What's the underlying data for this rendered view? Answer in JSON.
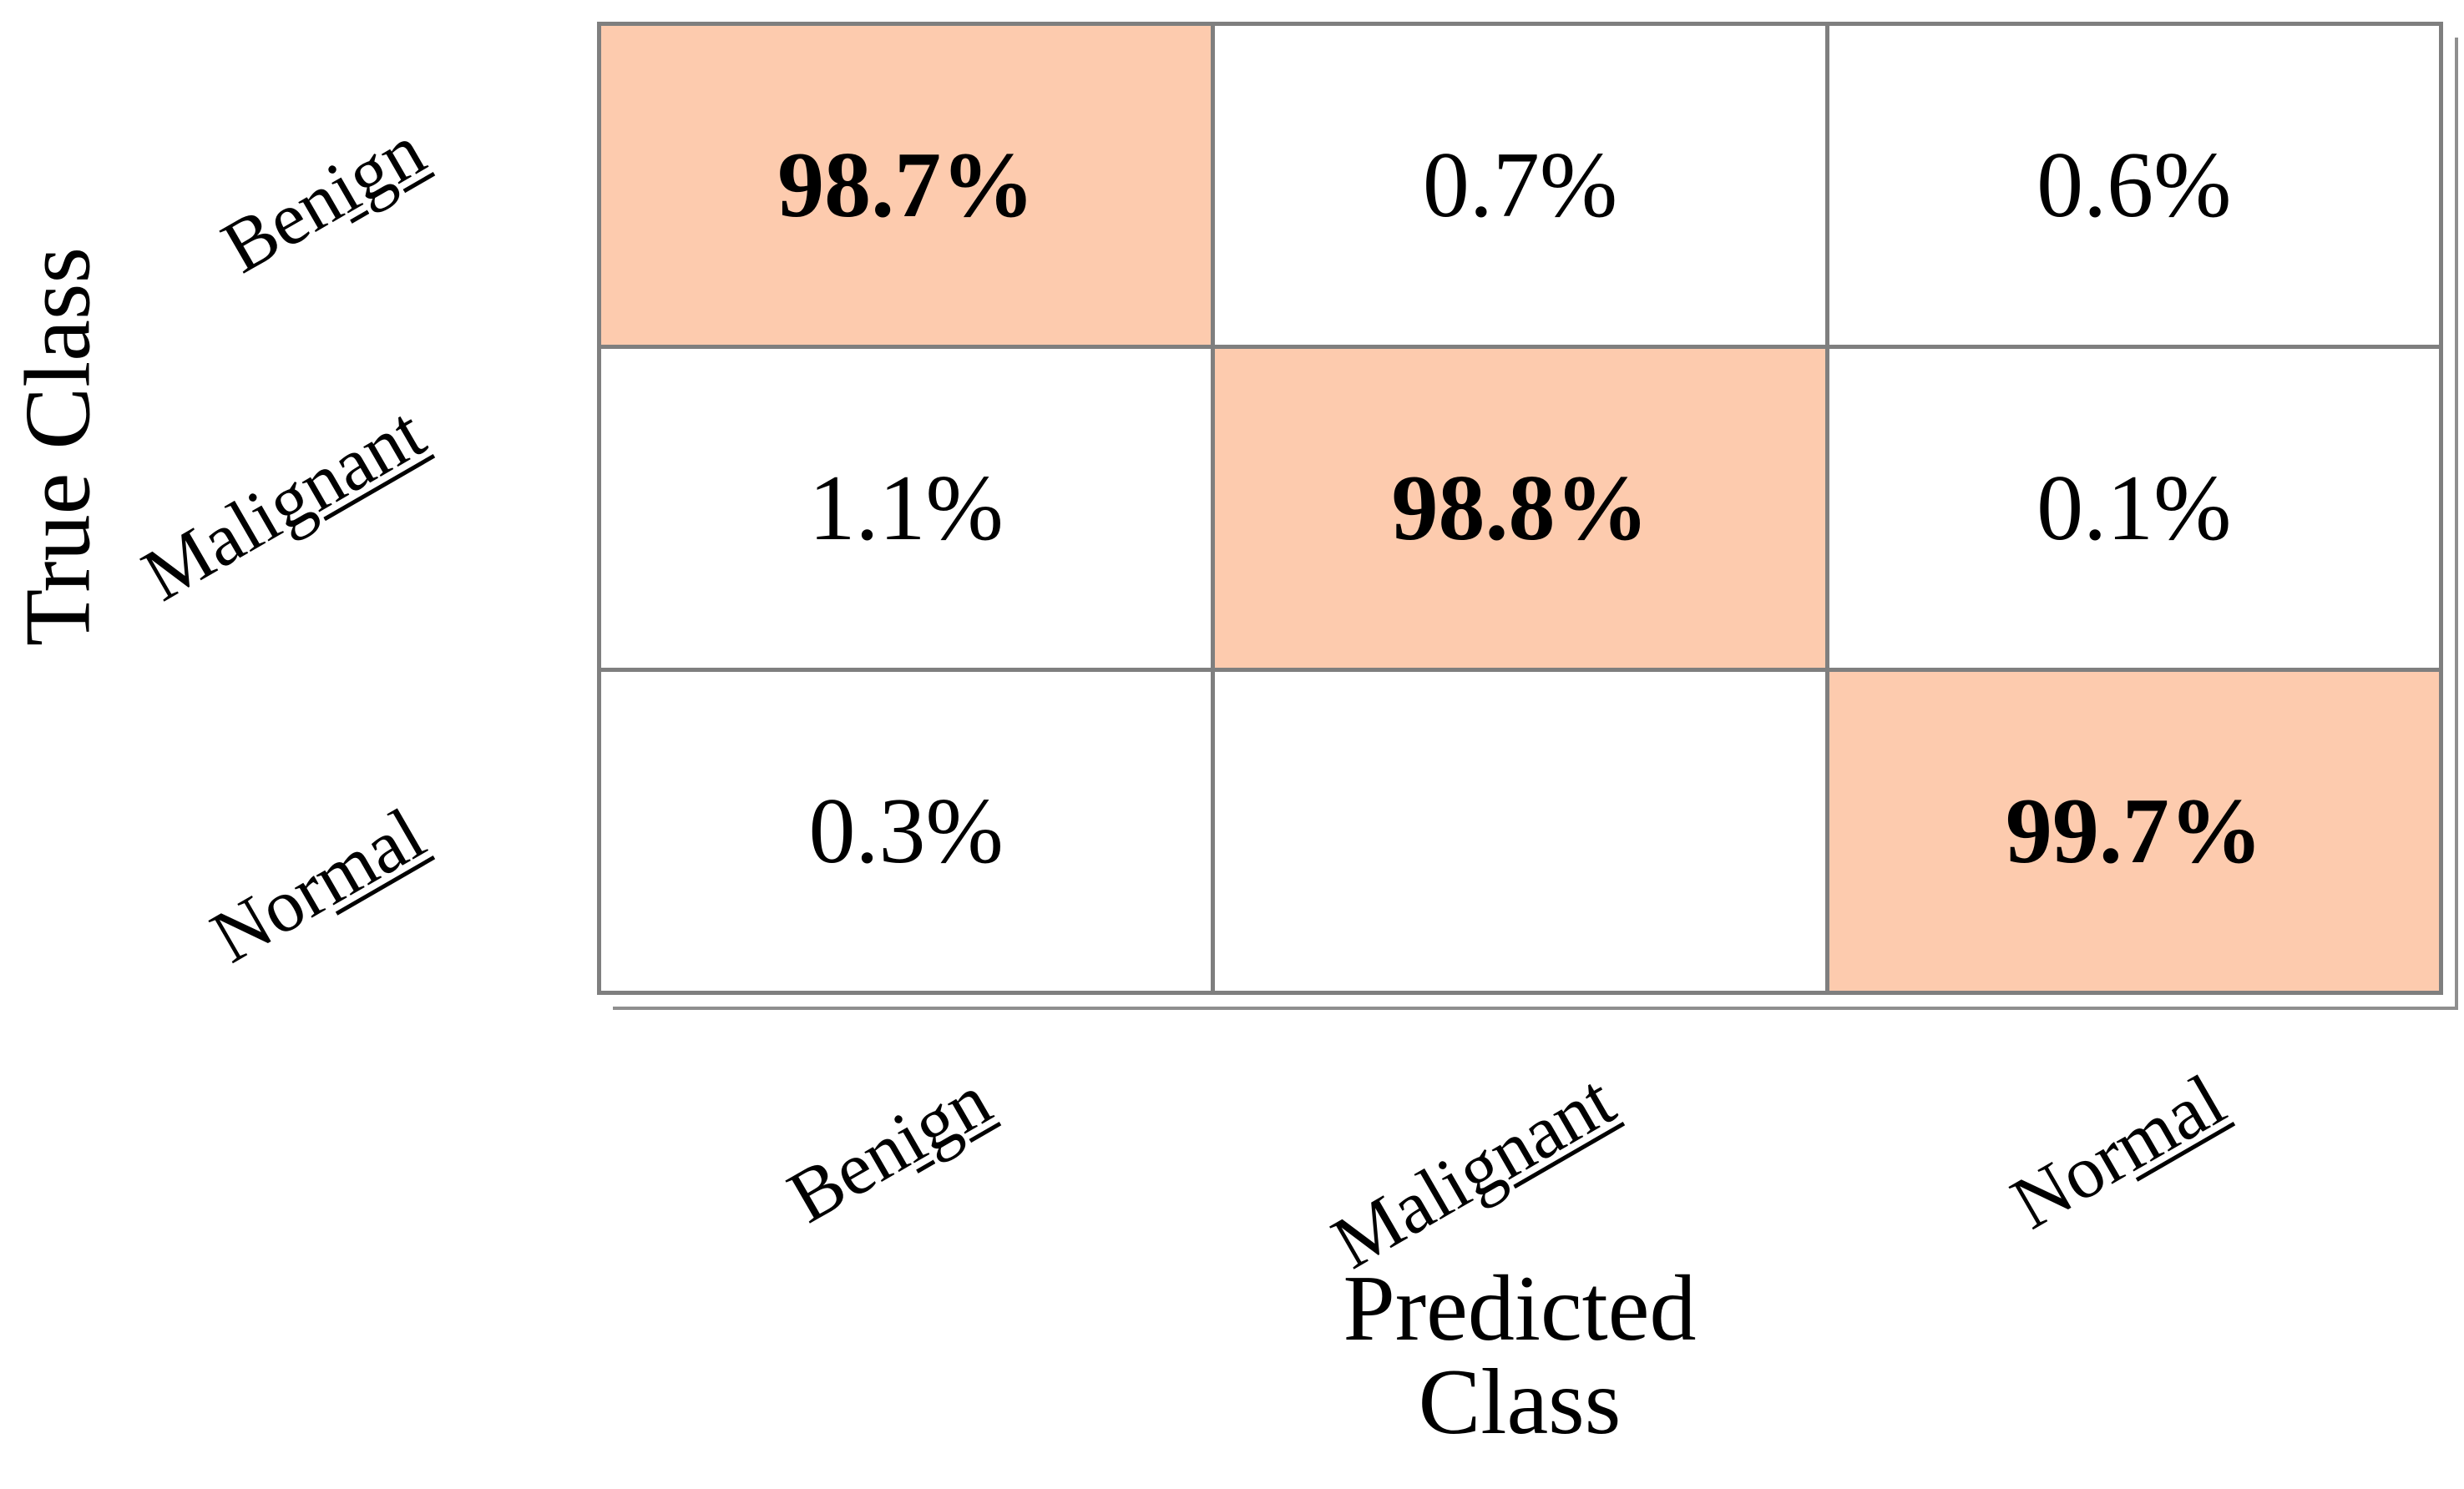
{
  "figure": {
    "background": "#ffffff",
    "y_axis_title": "True Class",
    "x_axis_title_line1": "Predicted",
    "x_axis_title_line2": "Class",
    "y_ticks": [
      "Benign",
      "Malignant",
      "Normal"
    ],
    "x_ticks": [
      "Benign",
      "Malignant",
      "Normal"
    ],
    "colors": {
      "diagonal_fill": "#fdcbae",
      "off_diagonal_fill": "#ffffff",
      "grid_line": "#7f7f7f",
      "shadow_line": "#8f8f8f",
      "text": "#000000"
    }
  },
  "cells": [
    {
      "true_class": "Benign",
      "predicted_class": "Benign",
      "label": "98.7%",
      "diagonal": true
    },
    {
      "true_class": "Benign",
      "predicted_class": "Malignant",
      "label": "0.7%",
      "diagonal": false
    },
    {
      "true_class": "Benign",
      "predicted_class": "Normal",
      "label": "0.6%",
      "diagonal": false
    },
    {
      "true_class": "Malignant",
      "predicted_class": "Benign",
      "label": "1.1%",
      "diagonal": false
    },
    {
      "true_class": "Malignant",
      "predicted_class": "Malignant",
      "label": "98.8%",
      "diagonal": true
    },
    {
      "true_class": "Malignant",
      "predicted_class": "Normal",
      "label": "0.1%",
      "diagonal": false
    },
    {
      "true_class": "Normal",
      "predicted_class": "Benign",
      "label": "0.3%",
      "diagonal": false
    },
    {
      "true_class": "Normal",
      "predicted_class": "Malignant",
      "label": "",
      "diagonal": false
    },
    {
      "true_class": "Normal",
      "predicted_class": "Normal",
      "label": "99.7%",
      "diagonal": true
    }
  ],
  "chart_data": {
    "type": "heatmap",
    "subtype": "confusion-matrix",
    "title": "",
    "xlabel": "Predicted Class",
    "ylabel": "True Class",
    "x_categories": [
      "Benign",
      "Malignant",
      "Normal"
    ],
    "y_categories": [
      "Benign",
      "Malignant",
      "Normal"
    ],
    "values_percent": [
      [
        98.7,
        0.7,
        0.6
      ],
      [
        1.1,
        98.8,
        0.1
      ],
      [
        0.3,
        null,
        99.7
      ]
    ],
    "cell_text": [
      [
        "98.7%",
        "0.7%",
        "0.6%"
      ],
      [
        "1.1%",
        "98.8%",
        "0.1%"
      ],
      [
        "0.3%",
        "",
        "99.7%"
      ]
    ],
    "highlight": "diagonal-cells-filled-peach-and-bold",
    "legend": "none",
    "grid": "on",
    "tick_label_rotation_deg": -30
  }
}
